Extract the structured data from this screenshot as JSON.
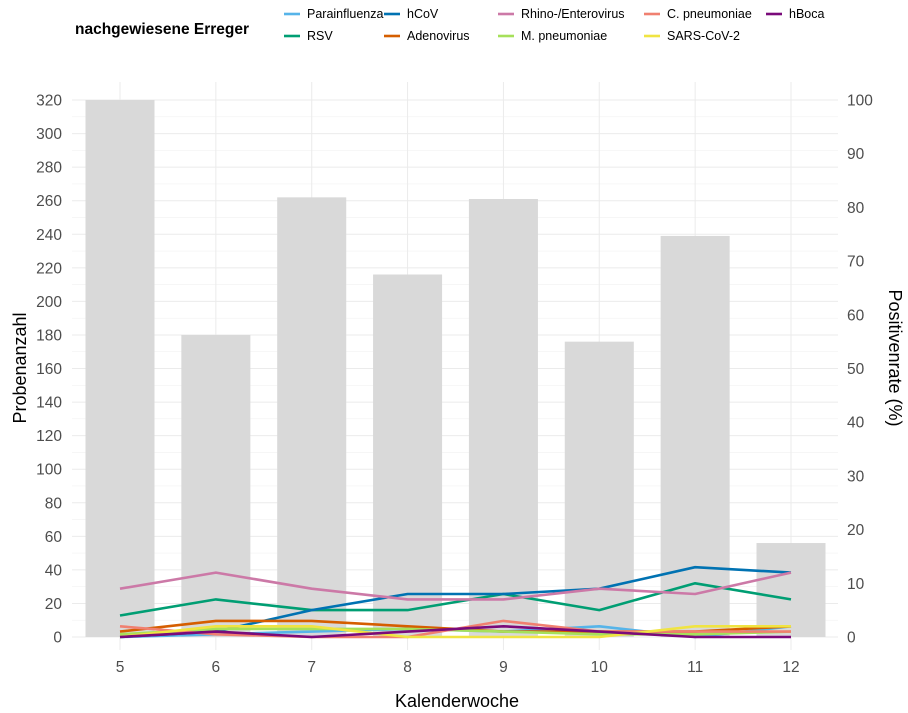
{
  "chart_data": {
    "type": "bar+line",
    "legend_title": "nachgewiesene Erreger",
    "legend_position": "top",
    "xlabel": "Kalenderwoche",
    "ylabel_left": "Probenanzahl",
    "ylabel_right": "Positivenrate (%)",
    "ylim_left": [
      0,
      320
    ],
    "ylim_right": [
      0,
      100
    ],
    "y_ticks_left": [
      0,
      20,
      40,
      60,
      80,
      100,
      120,
      140,
      160,
      180,
      200,
      220,
      240,
      260,
      280,
      300,
      320
    ],
    "y_ticks_right": [
      0,
      10,
      20,
      30,
      40,
      50,
      60,
      70,
      80,
      90,
      100
    ],
    "grid": true,
    "categories": [
      "5",
      "6",
      "7",
      "8",
      "9",
      "10",
      "11",
      "12"
    ],
    "bars": {
      "color": "#d9d9d9",
      "values": [
        320,
        180,
        262,
        216,
        261,
        176,
        239,
        56
      ]
    },
    "series": [
      {
        "name": "Parainfluenza",
        "color": "#56b4e9",
        "values": [
          0,
          0.5,
          1,
          1.5,
          1,
          2,
          0,
          2
        ]
      },
      {
        "name": "RSV",
        "color": "#009e73",
        "values": [
          4,
          7,
          5,
          5,
          8,
          5,
          10,
          7
        ]
      },
      {
        "name": "hCoV",
        "color": "#0072b2",
        "values": [
          0,
          1,
          5,
          8,
          8,
          9,
          13,
          12
        ]
      },
      {
        "name": "Adenovirus",
        "color": "#d55e00",
        "values": [
          1,
          3,
          3,
          2,
          1,
          1,
          1,
          2
        ]
      },
      {
        "name": "Rhino-/Enterovirus",
        "color": "#cc79a7",
        "values": [
          9,
          12,
          9,
          7,
          7,
          9,
          8,
          12
        ]
      },
      {
        "name": "M. pneumoniae",
        "color": "#a6e05a",
        "values": [
          0.5,
          1.5,
          1.5,
          1.5,
          1,
          0.5,
          0.5,
          1
        ]
      },
      {
        "name": "C. pneumoniae",
        "color": "#f08070",
        "values": [
          2,
          0.5,
          0,
          0,
          3,
          1,
          1,
          1
        ]
      },
      {
        "name": "SARS-CoV-2",
        "color": "#f0e442",
        "values": [
          0,
          2,
          2,
          0,
          0,
          0,
          2,
          2
        ]
      },
      {
        "name": "hBoca",
        "color": "#7a0a7a",
        "values": [
          0,
          1,
          0,
          1,
          2,
          1,
          0,
          0
        ]
      }
    ]
  }
}
